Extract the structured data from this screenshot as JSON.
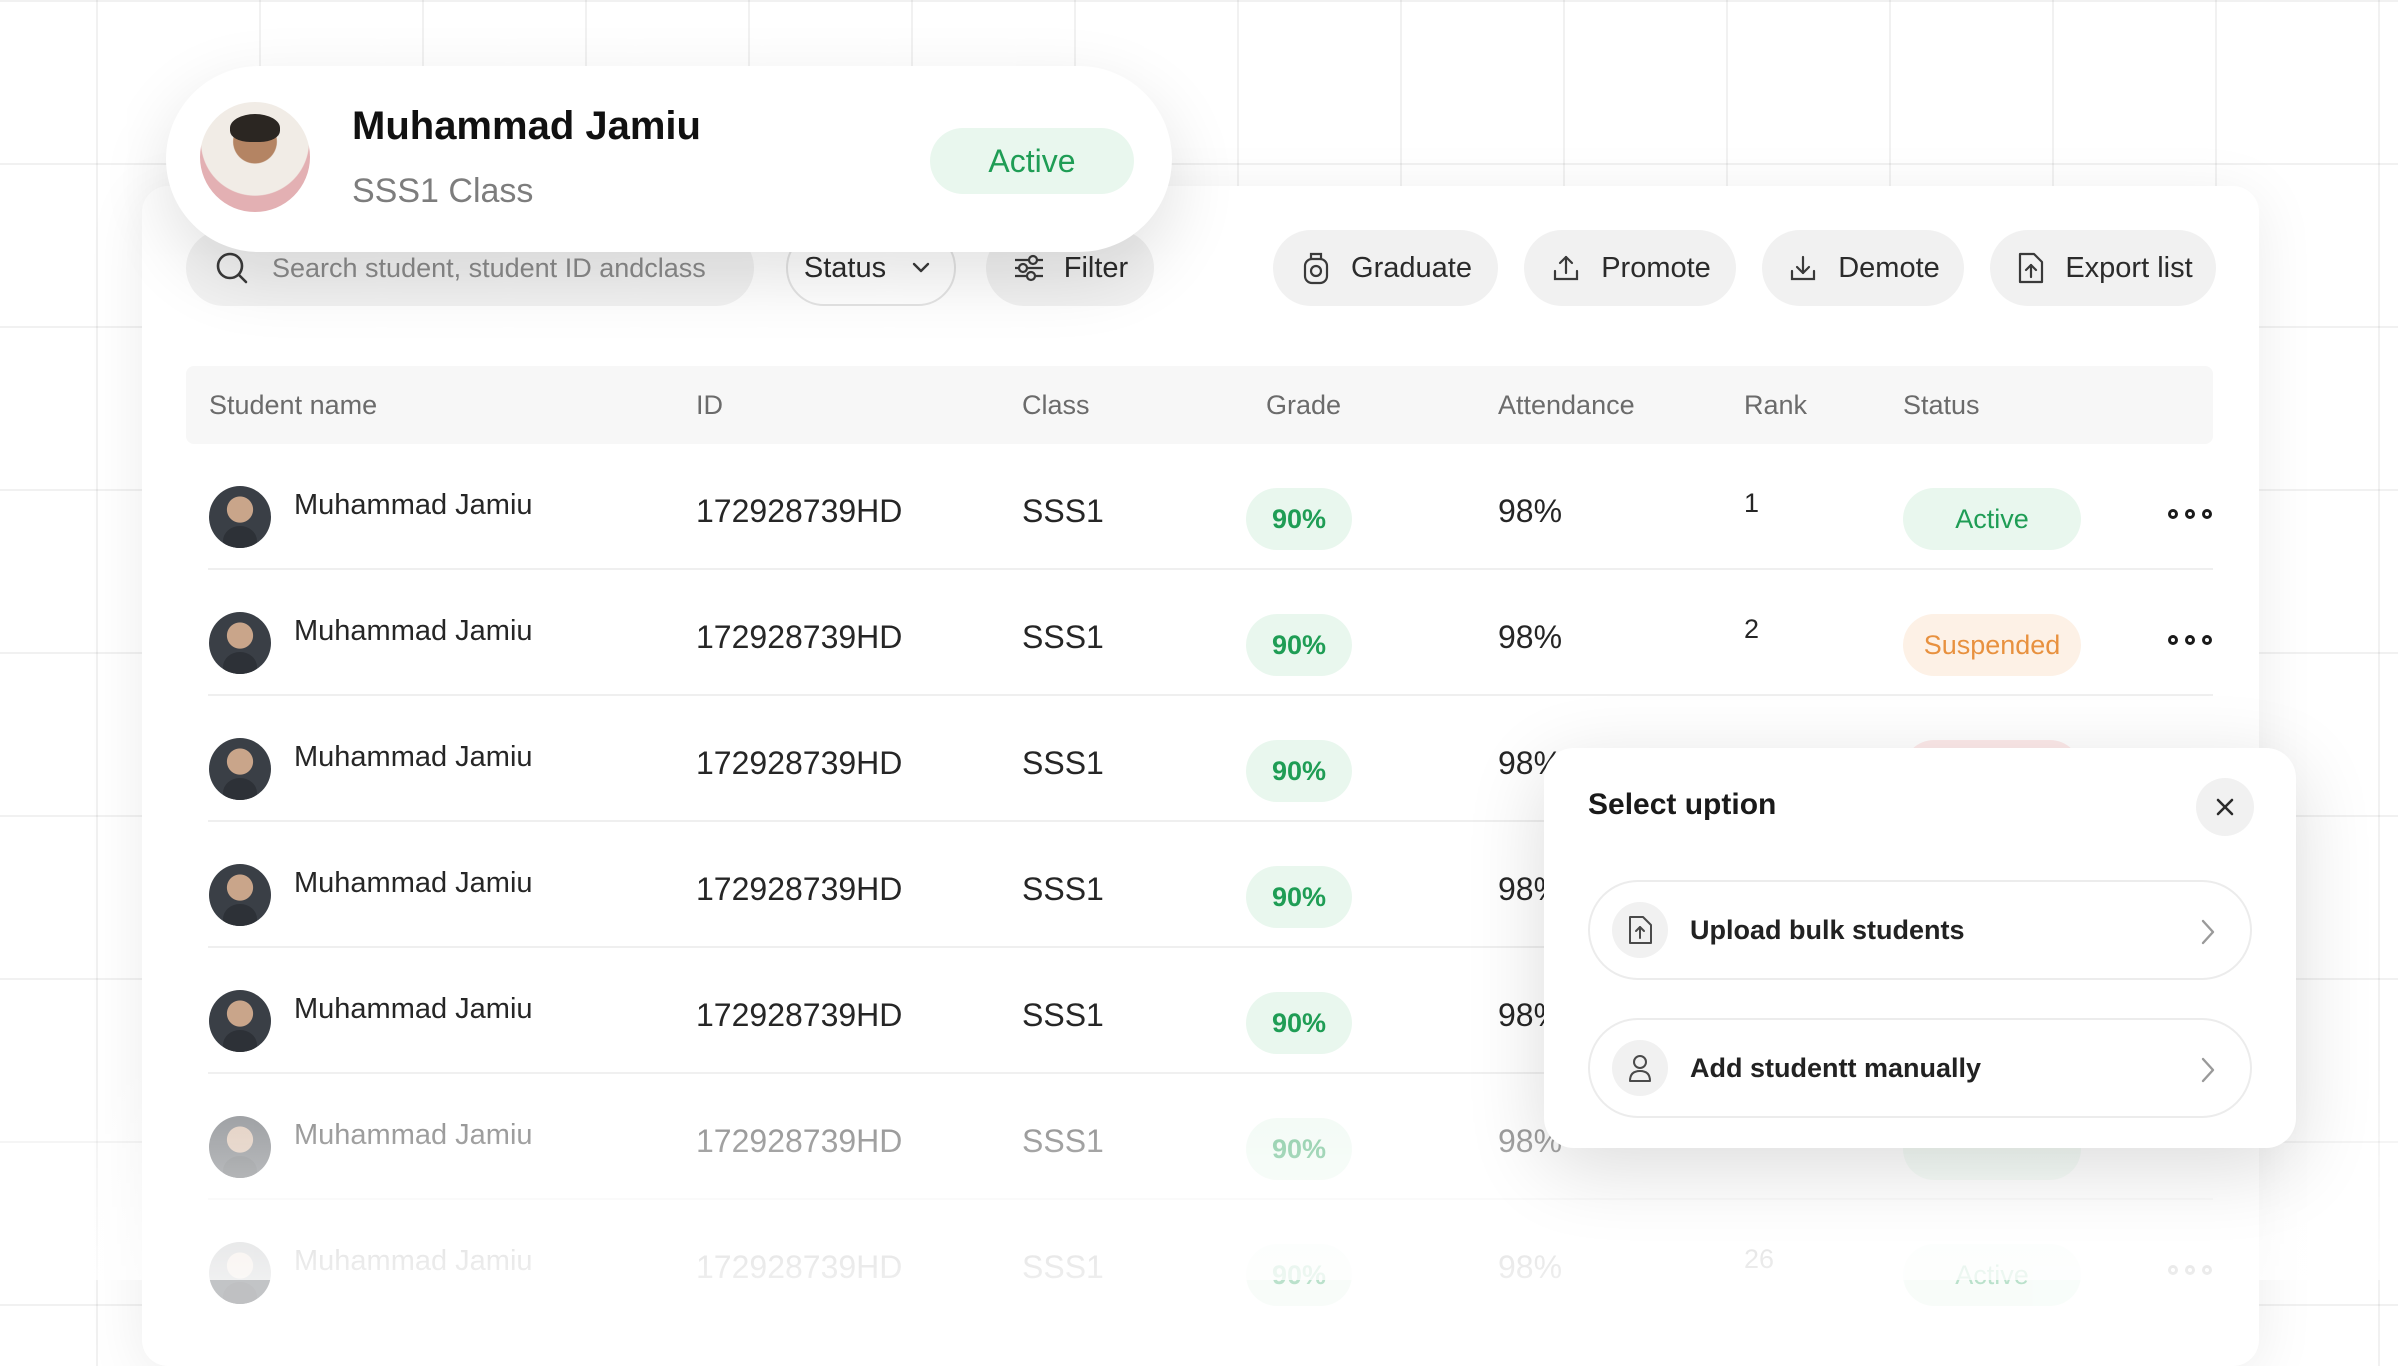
{
  "profile": {
    "name": "Muhammad Jamiu",
    "class": "SSS1 Class",
    "status": "Active",
    "avatar_icon": "user-avatar"
  },
  "toolbar": {
    "search_placeholder": "Search student, student ID andclass",
    "status_label": "Status",
    "filter_label": "Filter",
    "graduate_label": "Graduate",
    "promote_label": "Promote",
    "demote_label": "Demote",
    "export_label": "Export list"
  },
  "table": {
    "headers": {
      "name": "Student name",
      "id": "ID",
      "class": "Class",
      "grade": "Grade",
      "attendance": "Attendance",
      "rank": "Rank",
      "status": "Status"
    },
    "rows": [
      {
        "name": "Muhammad Jamiu",
        "id": "172928739HD",
        "class": "SSS1",
        "grade": "90%",
        "attendance": "98%",
        "rank": "1",
        "status": "Active"
      },
      {
        "name": "Muhammad Jamiu",
        "id": "172928739HD",
        "class": "SSS1",
        "grade": "90%",
        "attendance": "98%",
        "rank": "2",
        "status": "Suspended"
      },
      {
        "name": "Muhammad Jamiu",
        "id": "172928739HD",
        "class": "SSS1",
        "grade": "90%",
        "attendance": "98%",
        "rank": "",
        "status": ""
      },
      {
        "name": "Muhammad Jamiu",
        "id": "172928739HD",
        "class": "SSS1",
        "grade": "90%",
        "attendance": "98%",
        "rank": "",
        "status": ""
      },
      {
        "name": "Muhammad Jamiu",
        "id": "172928739HD",
        "class": "SSS1",
        "grade": "90%",
        "attendance": "98%",
        "rank": "",
        "status": ""
      },
      {
        "name": "Muhammad Jamiu",
        "id": "172928739HD",
        "class": "SSS1",
        "grade": "90%",
        "attendance": "98%",
        "rank": "",
        "status": ""
      },
      {
        "name": "Muhammad Jamiu",
        "id": "172928739HD",
        "class": "SSS1",
        "grade": "90%",
        "attendance": "98%",
        "rank": "26",
        "status": "Active"
      }
    ]
  },
  "modal": {
    "title": "Select uption",
    "options": [
      {
        "label": "Upload bulk students",
        "icon": "upload-file-icon"
      },
      {
        "label": "Add studentt manually",
        "icon": "user-icon"
      }
    ]
  },
  "colors": {
    "active_text": "#1f9d55",
    "active_bg": "#e9f7ee",
    "suspended_text": "#e8913f",
    "suspended_bg": "#fdf1e6"
  }
}
